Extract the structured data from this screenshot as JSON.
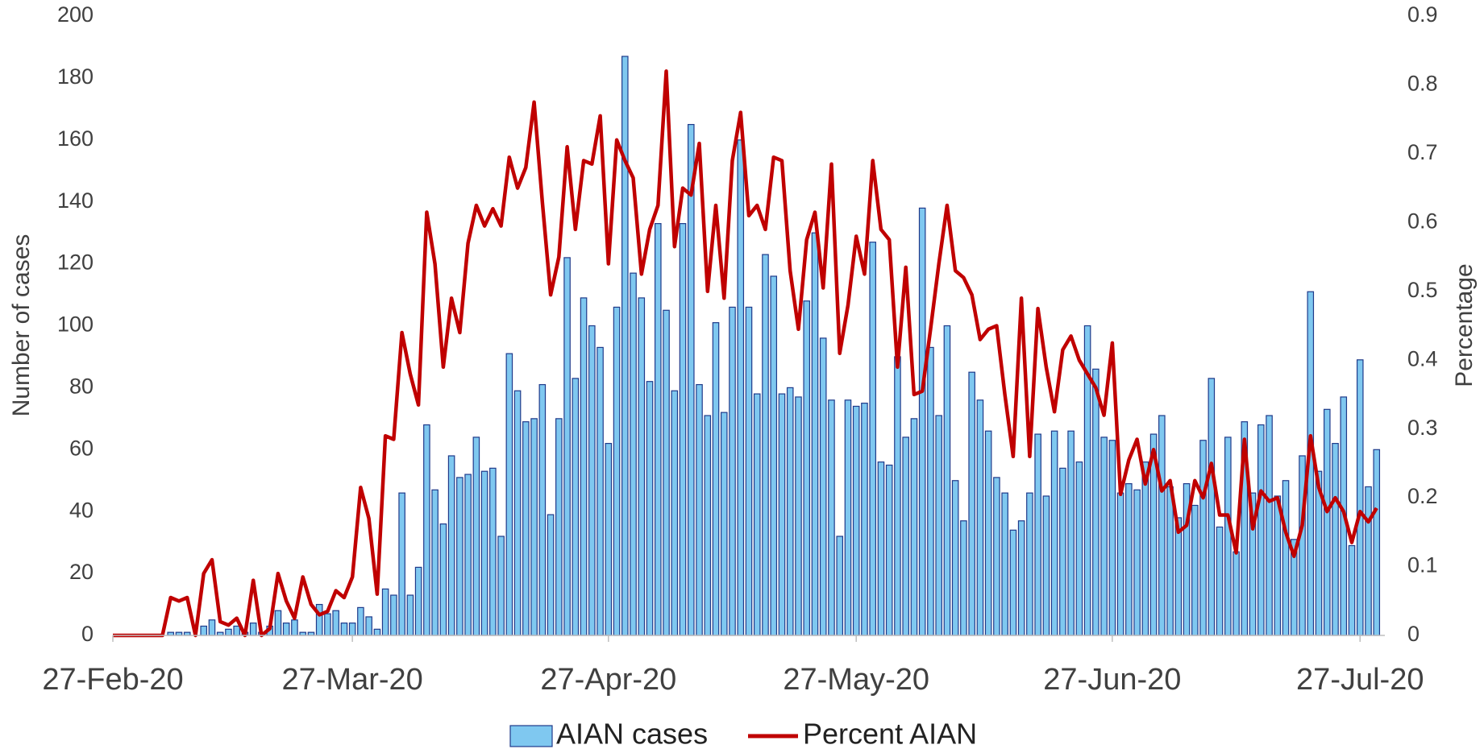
{
  "chart_data": {
    "type": "bar",
    "y_label": "Number of cases",
    "y2_label": "Percentage",
    "x": [
      "2020-02-27",
      "2020-02-28",
      "2020-02-29",
      "2020-03-01",
      "2020-03-02",
      "2020-03-03",
      "2020-03-04",
      "2020-03-05",
      "2020-03-06",
      "2020-03-07",
      "2020-03-08",
      "2020-03-09",
      "2020-03-10",
      "2020-03-11",
      "2020-03-12",
      "2020-03-13",
      "2020-03-14",
      "2020-03-15",
      "2020-03-16",
      "2020-03-17",
      "2020-03-18",
      "2020-03-19",
      "2020-03-20",
      "2020-03-21",
      "2020-03-22",
      "2020-03-23",
      "2020-03-24",
      "2020-03-25",
      "2020-03-26",
      "2020-03-27",
      "2020-03-28",
      "2020-03-29",
      "2020-03-30",
      "2020-03-31",
      "2020-04-01",
      "2020-04-02",
      "2020-04-03",
      "2020-04-04",
      "2020-04-05",
      "2020-04-06",
      "2020-04-07",
      "2020-04-08",
      "2020-04-09",
      "2020-04-10",
      "2020-04-11",
      "2020-04-12",
      "2020-04-13",
      "2020-04-14",
      "2020-04-15",
      "2020-04-16",
      "2020-04-17",
      "2020-04-18",
      "2020-04-19",
      "2020-04-20",
      "2020-04-21",
      "2020-04-22",
      "2020-04-23",
      "2020-04-24",
      "2020-04-25",
      "2020-04-26",
      "2020-04-27",
      "2020-04-28",
      "2020-04-29",
      "2020-04-30",
      "2020-05-01",
      "2020-05-02",
      "2020-05-03",
      "2020-05-04",
      "2020-05-05",
      "2020-05-06",
      "2020-05-07",
      "2020-05-08",
      "2020-05-09",
      "2020-05-10",
      "2020-05-11",
      "2020-05-12",
      "2020-05-13",
      "2020-05-14",
      "2020-05-15",
      "2020-05-16",
      "2020-05-17",
      "2020-05-18",
      "2020-05-19",
      "2020-05-20",
      "2020-05-21",
      "2020-05-22",
      "2020-05-23",
      "2020-05-24",
      "2020-05-25",
      "2020-05-26",
      "2020-05-27",
      "2020-05-28",
      "2020-05-29",
      "2020-05-30",
      "2020-05-31",
      "2020-06-01",
      "2020-06-02",
      "2020-06-03",
      "2020-06-04",
      "2020-06-05",
      "2020-06-06",
      "2020-06-07",
      "2020-06-08",
      "2020-06-09",
      "2020-06-10",
      "2020-06-11",
      "2020-06-12",
      "2020-06-13",
      "2020-06-14",
      "2020-06-15",
      "2020-06-16",
      "2020-06-17",
      "2020-06-18",
      "2020-06-19",
      "2020-06-20",
      "2020-06-21",
      "2020-06-22",
      "2020-06-23",
      "2020-06-24",
      "2020-06-25",
      "2020-06-26",
      "2020-06-27",
      "2020-06-28",
      "2020-06-29",
      "2020-06-30",
      "2020-07-01",
      "2020-07-02",
      "2020-07-03",
      "2020-07-04",
      "2020-07-05",
      "2020-07-06",
      "2020-07-07",
      "2020-07-08",
      "2020-07-09",
      "2020-07-10",
      "2020-07-11",
      "2020-07-12",
      "2020-07-13",
      "2020-07-14",
      "2020-07-15",
      "2020-07-16",
      "2020-07-17",
      "2020-07-18",
      "2020-07-19",
      "2020-07-20",
      "2020-07-21",
      "2020-07-22",
      "2020-07-23",
      "2020-07-24",
      "2020-07-25",
      "2020-07-26",
      "2020-07-27",
      "2020-07-28",
      "2020-07-29"
    ],
    "series": [
      {
        "name": "AIAN cases",
        "type": "bar",
        "color": "#7fc8f0",
        "edge": "#1f3a8a",
        "values": [
          0,
          0,
          0,
          0,
          0,
          0,
          0,
          1,
          1,
          1,
          0,
          3,
          5,
          1,
          2,
          3,
          1,
          4,
          1,
          3,
          8,
          4,
          5,
          1,
          1,
          10,
          7,
          8,
          4,
          4,
          9,
          6,
          2,
          15,
          13,
          46,
          13,
          22,
          68,
          47,
          36,
          58,
          51,
          52,
          64,
          53,
          54,
          32,
          91,
          79,
          69,
          70,
          81,
          39,
          70,
          122,
          83,
          109,
          100,
          93,
          62,
          106,
          187,
          117,
          109,
          82,
          133,
          105,
          79,
          133,
          165,
          81,
          71,
          101,
          72,
          106,
          160,
          106,
          78,
          123,
          116,
          78,
          80,
          77,
          108,
          130,
          96,
          76,
          32,
          76,
          74,
          75,
          127,
          56,
          55,
          90,
          64,
          70,
          138,
          93,
          71,
          100,
          50,
          37,
          85,
          76,
          66,
          51,
          46,
          34,
          37,
          46,
          65,
          45,
          66,
          54,
          66,
          56,
          100,
          86,
          64,
          63,
          46,
          49,
          47,
          56,
          65,
          71,
          48,
          38,
          49,
          42,
          63,
          83,
          35,
          64,
          27,
          69,
          46,
          68,
          71,
          45,
          50,
          31,
          58,
          111,
          53,
          73,
          62,
          77,
          29,
          89,
          48,
          60
        ]
      },
      {
        "name": "Percent AIAN",
        "type": "line",
        "color": "#c00000",
        "axis": "y2",
        "values": [
          0,
          0,
          0,
          0,
          0,
          0,
          0,
          0.055,
          0.05,
          0.055,
          0,
          0.09,
          0.11,
          0.02,
          0.015,
          0.025,
          0,
          0.08,
          0,
          0.01,
          0.09,
          0.05,
          0.025,
          0.085,
          0.045,
          0.03,
          0.035,
          0.065,
          0.055,
          0.085,
          0.215,
          0.17,
          0.06,
          0.29,
          0.285,
          0.44,
          0.38,
          0.335,
          0.615,
          0.54,
          0.39,
          0.49,
          0.44,
          0.57,
          0.625,
          0.595,
          0.62,
          0.595,
          0.695,
          0.65,
          0.68,
          0.775,
          0.63,
          0.495,
          0.55,
          0.71,
          0.59,
          0.69,
          0.685,
          0.755,
          0.54,
          0.72,
          0.69,
          0.665,
          0.525,
          0.59,
          0.625,
          0.82,
          0.565,
          0.65,
          0.64,
          0.715,
          0.5,
          0.625,
          0.49,
          0.69,
          0.76,
          0.61,
          0.625,
          0.59,
          0.695,
          0.69,
          0.53,
          0.445,
          0.575,
          0.615,
          0.505,
          0.685,
          0.41,
          0.48,
          0.58,
          0.525,
          0.69,
          0.59,
          0.575,
          0.39,
          0.535,
          0.35,
          0.355,
          0.445,
          0.54,
          0.625,
          0.53,
          0.52,
          0.495,
          0.43,
          0.445,
          0.45,
          0.35,
          0.26,
          0.49,
          0.26,
          0.475,
          0.39,
          0.325,
          0.415,
          0.435,
          0.4,
          0.38,
          0.36,
          0.32,
          0.425,
          0.205,
          0.255,
          0.285,
          0.22,
          0.27,
          0.21,
          0.225,
          0.15,
          0.16,
          0.225,
          0.2,
          0.25,
          0.175,
          0.175,
          0.12,
          0.285,
          0.155,
          0.21,
          0.195,
          0.2,
          0.15,
          0.115,
          0.16,
          0.29,
          0.215,
          0.18,
          0.2,
          0.18,
          0.135,
          0.18,
          0.165,
          0.185
        ]
      }
    ],
    "xlim": [
      "2020-02-27",
      "2020-07-30"
    ],
    "xticks": [
      {
        "value": "2020-02-27",
        "label": "27-Feb-20"
      },
      {
        "value": "2020-03-27",
        "label": "27-Mar-20"
      },
      {
        "value": "2020-04-27",
        "label": "27-Apr-20"
      },
      {
        "value": "2020-05-27",
        "label": "27-May-20"
      },
      {
        "value": "2020-06-27",
        "label": "27-Jun-20"
      },
      {
        "value": "2020-07-27",
        "label": "27-Jul-20"
      }
    ],
    "ylim": [
      0,
      200
    ],
    "yticks": [
      0,
      20,
      40,
      60,
      80,
      100,
      120,
      140,
      160,
      180,
      200
    ],
    "y2lim": [
      0,
      0.9
    ],
    "y2ticks": [
      0,
      0.1,
      0.2,
      0.3,
      0.4,
      0.5,
      0.6,
      0.7,
      0.8,
      0.9
    ],
    "legend": "bottom",
    "grid": false
  }
}
